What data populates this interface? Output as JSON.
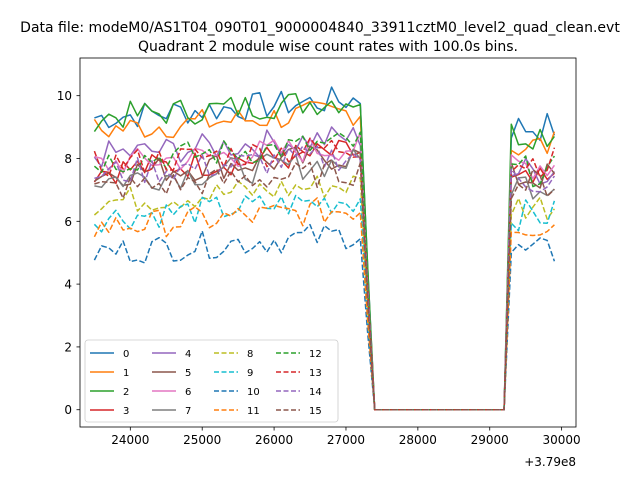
{
  "chart_data": {
    "type": "line",
    "suptitle": "Data file: modeM0/AS1T04_090T01_9000004840_33911cztM0_level2_quad_clean.evt",
    "title": "Quadrant 2 module wise count rates with 100.0s bins.",
    "xlabel": "",
    "ylabel": "",
    "x_offset_label": "+3.79e8",
    "xlim": [
      23300,
      30200
    ],
    "ylim": [
      -0.55,
      11.2
    ],
    "xticks": [
      24000,
      25000,
      26000,
      27000,
      28000,
      29000,
      30000
    ],
    "xtick_labels": [
      "24000",
      "25000",
      "26000",
      "27000",
      "28000",
      "29000",
      "30000"
    ],
    "yticks": [
      0,
      2,
      4,
      6,
      8,
      10
    ],
    "ytick_labels": [
      "0",
      "2",
      "4",
      "6",
      "8",
      "10"
    ],
    "legend": {
      "location": "lower left",
      "ncol": 4
    },
    "series": [
      {
        "name": "0",
        "color": "#1f77b4",
        "dash": "solid",
        "level": 9.3,
        "end": 9.0
      },
      {
        "name": "1",
        "color": "#ff7f0e",
        "dash": "solid",
        "level": 8.9,
        "end": 8.4
      },
      {
        "name": "2",
        "color": "#2ca02c",
        "dash": "solid",
        "level": 9.3,
        "end": 8.8
      },
      {
        "name": "3",
        "color": "#d62728",
        "dash": "solid",
        "level": 7.6,
        "end": 7.2
      },
      {
        "name": "4",
        "color": "#9467bd",
        "dash": "solid",
        "level": 8.1,
        "end": 7.6
      },
      {
        "name": "5",
        "color": "#8c564b",
        "dash": "solid",
        "level": 7.5,
        "end": 7.4
      },
      {
        "name": "6",
        "color": "#e377c2",
        "dash": "solid",
        "level": 7.8,
        "end": 7.8
      },
      {
        "name": "7",
        "color": "#7f7f7f",
        "dash": "solid",
        "level": 7.3,
        "end": 7.2
      },
      {
        "name": "8",
        "color": "#bcbd22",
        "dash": "dashed",
        "level": 6.6,
        "end": 6.5
      },
      {
        "name": "9",
        "color": "#17becf",
        "dash": "dashed",
        "level": 6.1,
        "end": 6.2
      },
      {
        "name": "10",
        "color": "#1f77b4",
        "dash": "dashed",
        "level": 5.0,
        "end": 5.0
      },
      {
        "name": "11",
        "color": "#ff7f0e",
        "dash": "dashed",
        "level": 5.8,
        "end": 5.9
      },
      {
        "name": "12",
        "color": "#2ca02c",
        "dash": "dashed",
        "level": 7.9,
        "end": 7.6
      },
      {
        "name": "13",
        "color": "#d62728",
        "dash": "dashed",
        "level": 7.8,
        "end": 7.9
      },
      {
        "name": "14",
        "color": "#9467bd",
        "dash": "dashed",
        "level": 7.5,
        "end": 7.3
      },
      {
        "name": "15",
        "color": "#8c564b",
        "dash": "dashed",
        "level": 7.0,
        "end": 7.2
      }
    ],
    "segments": {
      "active_1": [
        23500,
        27200
      ],
      "gap": [
        27400,
        29200
      ],
      "active_2": [
        29300,
        29900
      ],
      "bin": 100
    }
  }
}
